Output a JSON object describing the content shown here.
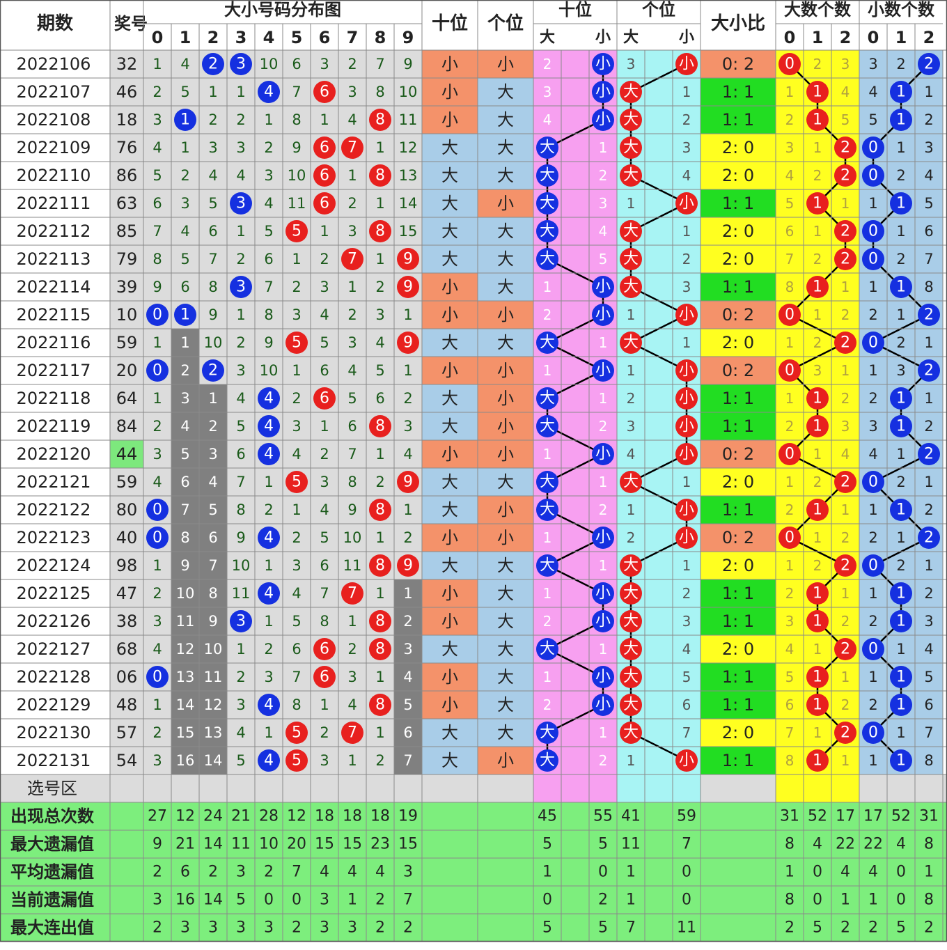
{
  "chart_data": {
    "type": "table",
    "headers": {
      "issue": "期数",
      "prize": "奖号",
      "dist_title": "大小号码分布图",
      "digits": [
        "0",
        "1",
        "2",
        "3",
        "4",
        "5",
        "6",
        "7",
        "8",
        "9"
      ],
      "tens": "十位",
      "units": "个位",
      "tens_trend": "十位",
      "units_trend": "个位",
      "big": "大",
      "small": "小",
      "ratio": "大小比",
      "big_count": "大数个数",
      "small_count": "小数个数",
      "count_digits": [
        "0",
        "1",
        "2"
      ]
    },
    "select_label": "选号区",
    "rows": [
      {
        "issue": "2022106",
        "num": "32",
        "miss": [
          1,
          4,
          "2",
          "3",
          10,
          6,
          3,
          2,
          7,
          9
        ],
        "tens": "小",
        "units": "小",
        "tt": [
          2,
          "小"
        ],
        "ut": [
          3,
          "小"
        ],
        "ratio": "0: 2",
        "bc": [
          "0",
          2,
          3
        ],
        "sc": [
          3,
          2,
          "2"
        ]
      },
      {
        "issue": "2022107",
        "num": "46",
        "miss": [
          2,
          5,
          1,
          1,
          "4",
          7,
          "6",
          3,
          8,
          10
        ],
        "tens": "小",
        "units": "大",
        "tt": [
          3,
          "小"
        ],
        "ut": [
          "大",
          1
        ],
        "ratio": "1: 1",
        "bc": [
          1,
          "1",
          4
        ],
        "sc": [
          4,
          "1",
          1
        ]
      },
      {
        "issue": "2022108",
        "num": "18",
        "miss": [
          3,
          "1",
          2,
          2,
          1,
          8,
          1,
          4,
          "8",
          11
        ],
        "tens": "小",
        "units": "大",
        "tt": [
          4,
          "小"
        ],
        "ut": [
          "大",
          2
        ],
        "ratio": "1: 1",
        "bc": [
          2,
          "1",
          5
        ],
        "sc": [
          5,
          "1",
          2
        ]
      },
      {
        "issue": "2022109",
        "num": "76",
        "miss": [
          4,
          1,
          3,
          3,
          2,
          9,
          "6",
          "7",
          1,
          12
        ],
        "tens": "大",
        "units": "大",
        "tt": [
          "大",
          1
        ],
        "ut": [
          "大",
          3
        ],
        "ratio": "2: 0",
        "bc": [
          3,
          1,
          "2"
        ],
        "sc": [
          "0",
          1,
          3
        ]
      },
      {
        "issue": "2022110",
        "num": "86",
        "miss": [
          5,
          2,
          4,
          4,
          3,
          10,
          "6",
          1,
          "8",
          13
        ],
        "tens": "大",
        "units": "大",
        "tt": [
          "大",
          2
        ],
        "ut": [
          "大",
          4
        ],
        "ratio": "2: 0",
        "bc": [
          4,
          2,
          "2"
        ],
        "sc": [
          "0",
          2,
          4
        ]
      },
      {
        "issue": "2022111",
        "num": "63",
        "miss": [
          6,
          3,
          5,
          "3",
          4,
          11,
          "6",
          2,
          1,
          14
        ],
        "tens": "大",
        "units": "小",
        "tt": [
          "大",
          3
        ],
        "ut": [
          1,
          "小"
        ],
        "ratio": "1: 1",
        "bc": [
          5,
          "1",
          1
        ],
        "sc": [
          1,
          "1",
          5
        ]
      },
      {
        "issue": "2022112",
        "num": "85",
        "miss": [
          7,
          4,
          6,
          1,
          5,
          "5",
          1,
          3,
          "8",
          15
        ],
        "tens": "大",
        "units": "大",
        "tt": [
          "大",
          4
        ],
        "ut": [
          "大",
          1
        ],
        "ratio": "2: 0",
        "bc": [
          6,
          1,
          "2"
        ],
        "sc": [
          "0",
          1,
          6
        ]
      },
      {
        "issue": "2022113",
        "num": "79",
        "miss": [
          8,
          5,
          7,
          2,
          6,
          1,
          2,
          "7",
          1,
          "9"
        ],
        "tens": "大",
        "units": "大",
        "tt": [
          "大",
          5
        ],
        "ut": [
          "大",
          2
        ],
        "ratio": "2: 0",
        "bc": [
          7,
          2,
          "2"
        ],
        "sc": [
          "0",
          2,
          7
        ]
      },
      {
        "issue": "2022114",
        "num": "39",
        "miss": [
          9,
          6,
          8,
          "3",
          7,
          2,
          3,
          1,
          2,
          "9"
        ],
        "tens": "小",
        "units": "大",
        "tt": [
          1,
          "小"
        ],
        "ut": [
          "大",
          3
        ],
        "ratio": "1: 1",
        "bc": [
          8,
          "1",
          1
        ],
        "sc": [
          1,
          "1",
          8
        ]
      },
      {
        "issue": "2022115",
        "num": "10",
        "miss": [
          "0",
          "1",
          9,
          1,
          8,
          3,
          4,
          2,
          3,
          1
        ],
        "tens": "小",
        "units": "小",
        "tt": [
          2,
          "小"
        ],
        "ut": [
          1,
          "小"
        ],
        "ratio": "0: 2",
        "bc": [
          "0",
          1,
          2
        ],
        "sc": [
          2,
          1,
          "2"
        ]
      },
      {
        "issue": "2022116",
        "num": "59",
        "miss": [
          1,
          1,
          10,
          2,
          9,
          "5",
          5,
          3,
          4,
          "9"
        ],
        "tens": "大",
        "units": "大",
        "tt": [
          "大",
          1
        ],
        "ut": [
          "大",
          1
        ],
        "ratio": "2: 0",
        "bc": [
          1,
          2,
          "2"
        ],
        "sc": [
          "0",
          2,
          1
        ]
      },
      {
        "issue": "2022117",
        "num": "20",
        "miss": [
          "0",
          2,
          "2",
          3,
          10,
          1,
          6,
          4,
          5,
          1
        ],
        "tens": "小",
        "units": "小",
        "tt": [
          1,
          "小"
        ],
        "ut": [
          1,
          "小"
        ],
        "ratio": "0: 2",
        "bc": [
          "0",
          3,
          1
        ],
        "sc": [
          1,
          3,
          "2"
        ]
      },
      {
        "issue": "2022118",
        "num": "64",
        "miss": [
          1,
          3,
          1,
          4,
          "4",
          2,
          "6",
          5,
          6,
          2
        ],
        "tens": "大",
        "units": "小",
        "tt": [
          "大",
          1
        ],
        "ut": [
          2,
          "小"
        ],
        "ratio": "1: 1",
        "bc": [
          1,
          "1",
          2
        ],
        "sc": [
          2,
          "1",
          1
        ]
      },
      {
        "issue": "2022119",
        "num": "84",
        "miss": [
          2,
          4,
          2,
          5,
          "4",
          3,
          1,
          6,
          "8",
          3
        ],
        "tens": "大",
        "units": "小",
        "tt": [
          "大",
          2
        ],
        "ut": [
          3,
          "小"
        ],
        "ratio": "1: 1",
        "bc": [
          2,
          "1",
          3
        ],
        "sc": [
          3,
          "1",
          2
        ]
      },
      {
        "issue": "2022120",
        "num": "44",
        "miss": [
          3,
          5,
          3,
          6,
          "4",
          4,
          2,
          7,
          1,
          4
        ],
        "tens": "小",
        "units": "小",
        "tt": [
          1,
          "小"
        ],
        "ut": [
          4,
          "小"
        ],
        "ratio": "0: 2",
        "bc": [
          "0",
          1,
          4
        ],
        "sc": [
          4,
          1,
          "2"
        ]
      },
      {
        "issue": "2022121",
        "num": "59",
        "miss": [
          4,
          6,
          4,
          7,
          1,
          "5",
          3,
          8,
          2,
          "9"
        ],
        "tens": "大",
        "units": "大",
        "tt": [
          "大",
          1
        ],
        "ut": [
          "大",
          1
        ],
        "ratio": "2: 0",
        "bc": [
          1,
          2,
          "2"
        ],
        "sc": [
          "0",
          2,
          1
        ]
      },
      {
        "issue": "2022122",
        "num": "80",
        "miss": [
          "0",
          7,
          5,
          8,
          2,
          1,
          4,
          9,
          "8",
          1
        ],
        "tens": "大",
        "units": "小",
        "tt": [
          "大",
          2
        ],
        "ut": [
          1,
          "小"
        ],
        "ratio": "1: 1",
        "bc": [
          2,
          "1",
          1
        ],
        "sc": [
          1,
          "1",
          2
        ]
      },
      {
        "issue": "2022123",
        "num": "40",
        "miss": [
          "0",
          8,
          6,
          9,
          "4",
          2,
          5,
          10,
          1,
          2
        ],
        "tens": "小",
        "units": "小",
        "tt": [
          1,
          "小"
        ],
        "ut": [
          2,
          "小"
        ],
        "ratio": "0: 2",
        "bc": [
          "0",
          1,
          2
        ],
        "sc": [
          2,
          1,
          "2"
        ]
      },
      {
        "issue": "2022124",
        "num": "98",
        "miss": [
          1,
          9,
          7,
          10,
          1,
          3,
          6,
          11,
          "8",
          "9"
        ],
        "tens": "大",
        "units": "大",
        "tt": [
          "大",
          1
        ],
        "ut": [
          "大",
          1
        ],
        "ratio": "2: 0",
        "bc": [
          1,
          2,
          "2"
        ],
        "sc": [
          "0",
          2,
          1
        ]
      },
      {
        "issue": "2022125",
        "num": "47",
        "miss": [
          2,
          10,
          8,
          11,
          "4",
          4,
          7,
          "7",
          1,
          1
        ],
        "tens": "小",
        "units": "大",
        "tt": [
          1,
          "小"
        ],
        "ut": [
          "大",
          2
        ],
        "ratio": "1: 1",
        "bc": [
          2,
          "1",
          1
        ],
        "sc": [
          1,
          "1",
          2
        ]
      },
      {
        "issue": "2022126",
        "num": "38",
        "miss": [
          3,
          11,
          9,
          "3",
          1,
          5,
          8,
          1,
          "8",
          2
        ],
        "tens": "小",
        "units": "大",
        "tt": [
          2,
          "小"
        ],
        "ut": [
          "大",
          3
        ],
        "ratio": "1: 1",
        "bc": [
          3,
          "1",
          2
        ],
        "sc": [
          2,
          "1",
          3
        ]
      },
      {
        "issue": "2022127",
        "num": "68",
        "miss": [
          4,
          12,
          10,
          1,
          2,
          6,
          "6",
          2,
          "8",
          3
        ],
        "tens": "大",
        "units": "大",
        "tt": [
          "大",
          1
        ],
        "ut": [
          "大",
          4
        ],
        "ratio": "2: 0",
        "bc": [
          4,
          1,
          "2"
        ],
        "sc": [
          "0",
          1,
          4
        ]
      },
      {
        "issue": "2022128",
        "num": "06",
        "miss": [
          "0",
          13,
          11,
          2,
          3,
          7,
          "6",
          3,
          1,
          4
        ],
        "tens": "小",
        "units": "大",
        "tt": [
          1,
          "小"
        ],
        "ut": [
          "大",
          5
        ],
        "ratio": "1: 1",
        "bc": [
          5,
          "1",
          1
        ],
        "sc": [
          1,
          "1",
          5
        ]
      },
      {
        "issue": "2022129",
        "num": "48",
        "miss": [
          1,
          14,
          12,
          3,
          "4",
          8,
          1,
          4,
          "8",
          5
        ],
        "tens": "小",
        "units": "大",
        "tt": [
          2,
          "小"
        ],
        "ut": [
          "大",
          6
        ],
        "ratio": "1: 1",
        "bc": [
          6,
          "1",
          2
        ],
        "sc": [
          2,
          "1",
          6
        ]
      },
      {
        "issue": "2022130",
        "num": "57",
        "miss": [
          2,
          15,
          13,
          4,
          1,
          "5",
          2,
          "7",
          1,
          6
        ],
        "tens": "大",
        "units": "大",
        "tt": [
          "大",
          1
        ],
        "ut": [
          "大",
          7
        ],
        "ratio": "2: 0",
        "bc": [
          7,
          1,
          "2"
        ],
        "sc": [
          "0",
          1,
          7
        ]
      },
      {
        "issue": "2022131",
        "num": "54",
        "miss": [
          3,
          16,
          14,
          5,
          "4",
          "5",
          3,
          1,
          2,
          7
        ],
        "tens": "大",
        "units": "小",
        "tt": [
          "大",
          2
        ],
        "ut": [
          1,
          "小"
        ],
        "ratio": "1: 1",
        "bc": [
          8,
          "1",
          1
        ],
        "sc": [
          1,
          "1",
          8
        ]
      }
    ],
    "gray_columns": [
      1,
      2,
      9
    ],
    "highlight_num_row": 14,
    "stats": [
      {
        "label": "出现总次数",
        "digits": [
          27,
          12,
          24,
          21,
          28,
          12,
          18,
          18,
          18,
          19
        ],
        "tens": [
          45,
          55
        ],
        "units": [
          41,
          59
        ],
        "bc": [
          31,
          52,
          17
        ],
        "sc": [
          17,
          52,
          31
        ]
      },
      {
        "label": "最大遗漏值",
        "digits": [
          9,
          21,
          14,
          11,
          10,
          20,
          15,
          15,
          23,
          15
        ],
        "tens": [
          5,
          5
        ],
        "units": [
          11,
          7
        ],
        "bc": [
          8,
          4,
          22
        ],
        "sc": [
          22,
          4,
          8
        ]
      },
      {
        "label": "平均遗漏值",
        "digits": [
          2,
          6,
          2,
          3,
          2,
          7,
          4,
          4,
          4,
          3
        ],
        "tens": [
          1,
          0
        ],
        "units": [
          1,
          0
        ],
        "bc": [
          1,
          0,
          4
        ],
        "sc": [
          4,
          0,
          1
        ]
      },
      {
        "label": "当前遗漏值",
        "digits": [
          3,
          16,
          14,
          5,
          0,
          0,
          3,
          1,
          2,
          7
        ],
        "tens": [
          0,
          2
        ],
        "units": [
          1,
          0
        ],
        "bc": [
          8,
          0,
          1
        ],
        "sc": [
          1,
          0,
          8
        ]
      },
      {
        "label": "最大连出值",
        "digits": [
          2,
          3,
          3,
          3,
          3,
          2,
          3,
          3,
          2,
          2
        ],
        "tens": [
          5,
          5
        ],
        "units": [
          7,
          11
        ],
        "bc": [
          2,
          5,
          2
        ],
        "sc": [
          2,
          5,
          2
        ]
      }
    ],
    "colors": {
      "grid_bg": "#dcdcdc",
      "gray_col": "#808080",
      "small_cell": "#f4926a",
      "big_cell": "#a9cde8",
      "tens_bg": "#f7a0f0",
      "units_bg": "#a8f4f4",
      "ratio_yellow": "#ffff20",
      "ratio_green": "#22dd22",
      "ratio_orange": "#f4926a",
      "bigcount_bg": "#ffff20",
      "smallcount_bg": "#a9cde8",
      "stat_green": "#7dee7d",
      "red_ball": "#e8201e",
      "blue_ball": "#1530e0",
      "text_green": "#1a5a1a",
      "highlight": "#7de87d"
    }
  }
}
